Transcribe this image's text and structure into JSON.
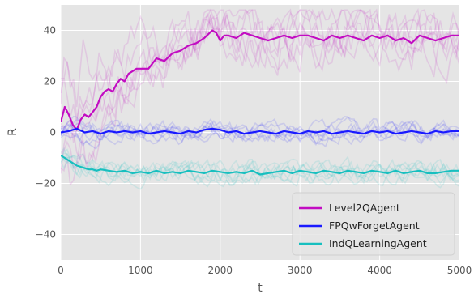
{
  "chart_data": {
    "type": "line",
    "xlabel": "t",
    "ylabel": "R",
    "xlim": [
      0,
      5000
    ],
    "ylim": [
      -50,
      50
    ],
    "xticks": [
      0,
      1000,
      2000,
      3000,
      4000,
      5000
    ],
    "yticks": [
      -40,
      -20,
      0,
      20,
      40
    ],
    "xtick_labels": [
      "0",
      "1000",
      "2000",
      "3000",
      "4000",
      "5000"
    ],
    "ytick_labels": [
      "−40",
      "−20",
      "0",
      "20",
      "40"
    ],
    "grid": true,
    "legend_position": "bottom-right",
    "style": "ggplot",
    "series": [
      {
        "name": "Level2QAgent",
        "color": "#c20cc2",
        "band": [
          -45,
          48
        ],
        "x": [
          0,
          50,
          100,
          150,
          200,
          250,
          300,
          350,
          400,
          450,
          500,
          550,
          600,
          650,
          700,
          750,
          800,
          850,
          900,
          950,
          1000,
          1100,
          1200,
          1300,
          1400,
          1500,
          1600,
          1700,
          1800,
          1900,
          1950,
          2000,
          2050,
          2100,
          2200,
          2300,
          2400,
          2500,
          2600,
          2700,
          2800,
          2900,
          3000,
          3100,
          3200,
          3300,
          3400,
          3500,
          3600,
          3700,
          3800,
          3900,
          4000,
          4100,
          4200,
          4300,
          4400,
          4500,
          4600,
          4700,
          4800,
          4900,
          5000
        ],
        "values": [
          4,
          10,
          7,
          3,
          1,
          5,
          7,
          6,
          8,
          10,
          14,
          16,
          17,
          16,
          19,
          21,
          20,
          23,
          24,
          25,
          25,
          25,
          29,
          28,
          31,
          32,
          34,
          35,
          37,
          40,
          39,
          36,
          38,
          38,
          37,
          39,
          38,
          37,
          36,
          37,
          38,
          37,
          38,
          38,
          37,
          36,
          38,
          37,
          38,
          37,
          36,
          38,
          37,
          38,
          36,
          37,
          35,
          38,
          37,
          36,
          37,
          38,
          38
        ]
      },
      {
        "name": "FPQwForgetAgent",
        "color": "#1a1aff",
        "band": [
          -8,
          8
        ],
        "x": [
          0,
          100,
          200,
          300,
          400,
          500,
          600,
          700,
          800,
          900,
          1000,
          1100,
          1200,
          1300,
          1400,
          1500,
          1600,
          1700,
          1800,
          1900,
          2000,
          2100,
          2200,
          2300,
          2400,
          2500,
          2600,
          2700,
          2800,
          2900,
          3000,
          3100,
          3200,
          3300,
          3400,
          3500,
          3600,
          3700,
          3800,
          3900,
          4000,
          4100,
          4200,
          4300,
          4400,
          4500,
          4600,
          4700,
          4800,
          4900,
          5000
        ],
        "values": [
          0,
          0.5,
          1.5,
          0,
          0.5,
          -0.5,
          0.5,
          0,
          0.5,
          0,
          0.5,
          -0.5,
          0,
          0.5,
          0,
          -0.5,
          0.5,
          0,
          1,
          1.5,
          1,
          0,
          0.5,
          -0.5,
          0,
          0.5,
          0,
          -0.5,
          0.5,
          0,
          -0.5,
          0.5,
          0,
          0.5,
          -0.5,
          0,
          0.5,
          0,
          -0.5,
          0.5,
          0,
          0.5,
          -0.5,
          0,
          0.5,
          0,
          -0.5,
          0.5,
          0,
          0.5,
          0.5
        ]
      },
      {
        "name": "IndQLearningAgent",
        "color": "#17bfbf",
        "band": [
          -25,
          -6
        ],
        "x": [
          0,
          50,
          100,
          150,
          200,
          250,
          300,
          350,
          400,
          450,
          500,
          600,
          700,
          800,
          900,
          1000,
          1100,
          1200,
          1300,
          1400,
          1500,
          1600,
          1700,
          1800,
          1900,
          2000,
          2100,
          2200,
          2300,
          2400,
          2500,
          2600,
          2700,
          2800,
          2900,
          3000,
          3100,
          3200,
          3300,
          3400,
          3500,
          3600,
          3700,
          3800,
          3900,
          4000,
          4100,
          4200,
          4300,
          4400,
          4500,
          4600,
          4700,
          4800,
          4900,
          5000
        ],
        "values": [
          -9,
          -10,
          -11,
          -12,
          -13,
          -13.5,
          -14,
          -14.5,
          -14.5,
          -15,
          -14.5,
          -15,
          -15.5,
          -15,
          -16,
          -15.5,
          -16,
          -15,
          -16,
          -15.5,
          -16,
          -15,
          -15.5,
          -16,
          -15,
          -15.5,
          -16,
          -15.5,
          -16,
          -15,
          -16.5,
          -16,
          -15.5,
          -15,
          -16,
          -15,
          -15.5,
          -16,
          -15,
          -15.5,
          -16,
          -15,
          -15.5,
          -16,
          -15,
          -15.5,
          -16,
          -15,
          -16,
          -15.5,
          -15,
          -16,
          -16,
          -15.5,
          -15,
          -15
        ]
      }
    ]
  }
}
